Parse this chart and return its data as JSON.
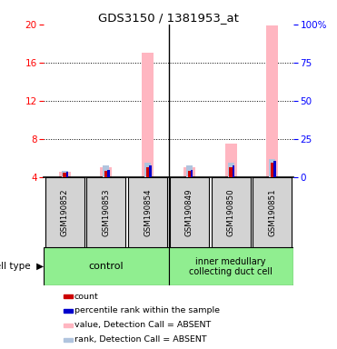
{
  "title": "GDS3150 / 1381953_at",
  "samples": [
    "GSM190852",
    "GSM190853",
    "GSM190854",
    "GSM190849",
    "GSM190850",
    "GSM190851"
  ],
  "group_names": [
    "control",
    "inner medullary\ncollecting duct cell"
  ],
  "group_sizes": [
    3,
    3
  ],
  "group_color": "#90ee90",
  "ylim_left": [
    4,
    20
  ],
  "ylim_right": [
    0,
    100
  ],
  "yticks_left": [
    4,
    8,
    12,
    16,
    20
  ],
  "yticks_right": [
    0,
    25,
    50,
    75,
    100
  ],
  "ytick_labels_right": [
    "0",
    "25",
    "50",
    "75",
    "100%"
  ],
  "value_bars": [
    4.55,
    5.05,
    17.0,
    5.05,
    7.5,
    19.85
  ],
  "rank_bars": [
    4.65,
    5.15,
    5.45,
    5.15,
    5.5,
    5.85
  ],
  "count_bars": [
    4.42,
    4.62,
    4.98,
    4.62,
    4.98,
    5.45
  ],
  "percentile_bars": [
    4.55,
    4.75,
    5.15,
    4.75,
    5.2,
    5.7
  ],
  "value_color": "#ffb6c1",
  "rank_color": "#b0c4de",
  "count_color": "#cc0000",
  "percentile_color": "#0000cc",
  "bar_base": 4.0,
  "left_tick_color": "red",
  "right_tick_color": "blue",
  "bg_color": "#d3d3d3",
  "legend_items": [
    {
      "label": "count",
      "color": "#cc0000"
    },
    {
      "label": "percentile rank within the sample",
      "color": "#0000cc"
    },
    {
      "label": "value, Detection Call = ABSENT",
      "color": "#ffb6c1"
    },
    {
      "label": "rank, Detection Call = ABSENT",
      "color": "#b0c4de"
    }
  ]
}
